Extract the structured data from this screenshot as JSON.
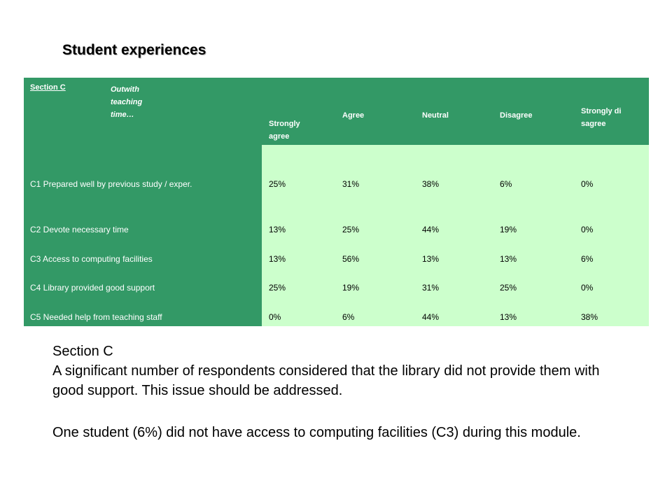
{
  "page": {
    "title": "Student experiences"
  },
  "table": {
    "section_label": "Section C",
    "section_desc": "Outwith teaching time…",
    "columns": [
      "Strongly agree",
      "Agree",
      "Neutral",
      "Disagree",
      "Strongly disagree"
    ],
    "rows": [
      {
        "label": "C1 Prepared well by previous study / exper.",
        "values": [
          "25%",
          "31%",
          "38%",
          "6%",
          "0%"
        ]
      },
      {
        "label": "C2 Devote necessary time",
        "values": [
          "13%",
          "25%",
          "44%",
          "19%",
          "0%"
        ]
      },
      {
        "label": "C3 Access to computing facilities",
        "values": [
          "13%",
          "56%",
          "13%",
          "13%",
          "6%"
        ]
      },
      {
        "label": "C4 Library provided good support",
        "values": [
          "25%",
          "19%",
          "31%",
          "25%",
          "0%"
        ]
      },
      {
        "label": "C5 Needed help from teaching staff",
        "values": [
          "0%",
          "6%",
          "44%",
          "13%",
          "38%"
        ]
      }
    ]
  },
  "commentary": {
    "heading": "Section C",
    "para1": "A significant number of respondents considered that the library did not provide them with good support.  This issue should be addressed.",
    "para2": "One student (6%) did not have access to computing facilities (C3) during this module."
  }
}
